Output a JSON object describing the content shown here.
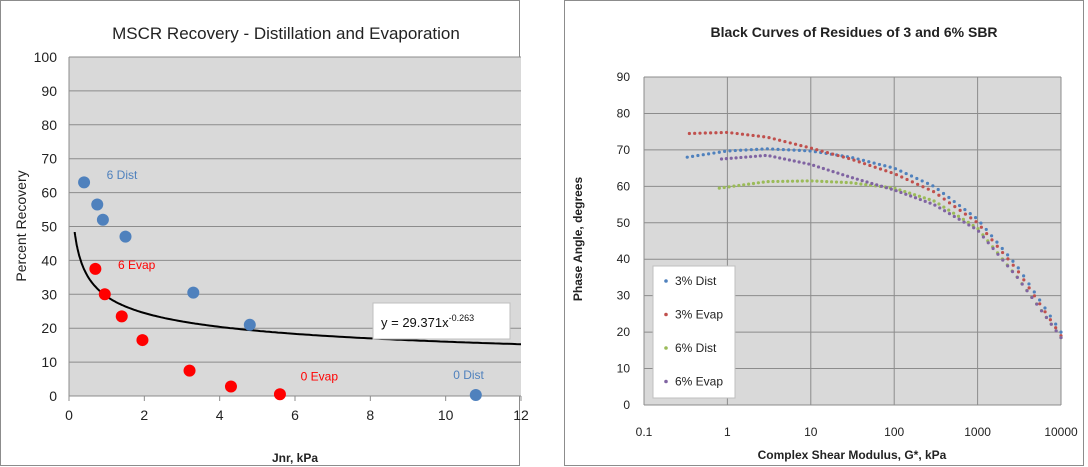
{
  "chart_data": [
    {
      "type": "scatter",
      "title": "MSCR Recovery - Distillation and Evaporation",
      "xlabel": "Jnr, kPa",
      "ylabel": "Percent Recovery",
      "xlim": [
        0,
        12
      ],
      "ylim": [
        0,
        100
      ],
      "xticks": [
        "0",
        "2",
        "4",
        "6",
        "8",
        "10",
        "12"
      ],
      "yticks": [
        "0",
        "10",
        "20",
        "30",
        "40",
        "50",
        "60",
        "70",
        "80",
        "90",
        "100"
      ],
      "grid": true,
      "background": "#d9d9d9",
      "series": [
        {
          "color": "#4f81bd",
          "points": [
            [
              0.4,
              63
            ],
            [
              0.75,
              56.5
            ],
            [
              0.9,
              52
            ],
            [
              1.5,
              47
            ],
            [
              3.3,
              30.5
            ],
            [
              4.8,
              21
            ],
            [
              10.8,
              0.3
            ]
          ]
        },
        {
          "color": "#ff0000",
          "points": [
            [
              0.7,
              37.5
            ],
            [
              0.95,
              30
            ],
            [
              1.4,
              23.5
            ],
            [
              1.95,
              16.5
            ],
            [
              3.2,
              7.5
            ],
            [
              4.3,
              2.8
            ],
            [
              5.6,
              0.5
            ]
          ]
        }
      ],
      "trendline": {
        "a": 29.371,
        "b": -0.263,
        "x_from": 0.15,
        "x_to": 12,
        "color": "#000000"
      },
      "equation": {
        "prefix": "y = 29.371x",
        "exponent": "-0.263"
      },
      "annotations": [
        {
          "text": "6 Dist",
          "color": "#4f81bd",
          "at": [
            1.0,
            64
          ]
        },
        {
          "text": "6 Evap",
          "color": "#ff0000",
          "at": [
            1.3,
            37.5
          ]
        },
        {
          "text": "0 Evap",
          "color": "#ff0000",
          "at": [
            6.15,
            4.5
          ]
        },
        {
          "text": "0 Dist",
          "color": "#4f81bd",
          "at": [
            10.2,
            5
          ]
        }
      ]
    },
    {
      "type": "scatter",
      "title": "Black Curves of Residues of 3 and 6% SBR",
      "xlabel": "Complex Shear Modulus, G*, kPa",
      "ylabel": "Phase Angle, degrees",
      "xscale": "log",
      "xlim": [
        0.1,
        10000
      ],
      "ylim": [
        0,
        90
      ],
      "xticks": [
        "0.1",
        "1",
        "10",
        "100",
        "1000",
        "10000"
      ],
      "yticks": [
        "0",
        "10",
        "20",
        "30",
        "40",
        "50",
        "60",
        "70",
        "80",
        "90"
      ],
      "grid": true,
      "background": "#d9d9d9",
      "legend": "bottom-left",
      "series": [
        {
          "name": "3% Dist",
          "color": "#4f81bd",
          "knots": [
            [
              0.33,
              68
            ],
            [
              1,
              69.7
            ],
            [
              3,
              70.3
            ],
            [
              10,
              69.7
            ],
            [
              30,
              68
            ],
            [
              100,
              65
            ],
            [
              300,
              60
            ],
            [
              1000,
              51
            ],
            [
              3000,
              38
            ],
            [
              10000,
              20
            ]
          ]
        },
        {
          "name": "3% Evap",
          "color": "#c0504d",
          "knots": [
            [
              0.35,
              74.5
            ],
            [
              1,
              74.8
            ],
            [
              3,
              73.5
            ],
            [
              10,
              70.5
            ],
            [
              30,
              67.5
            ],
            [
              100,
              63.5
            ],
            [
              300,
              58.5
            ],
            [
              1000,
              50
            ],
            [
              3000,
              37
            ],
            [
              10000,
              19
            ]
          ]
        },
        {
          "name": "6% Dist",
          "color": "#9bbb59",
          "knots": [
            [
              0.8,
              59.5
            ],
            [
              3,
              61.3
            ],
            [
              10,
              61.5
            ],
            [
              30,
              61
            ],
            [
              100,
              59.5
            ],
            [
              300,
              56
            ],
            [
              1000,
              48.5
            ],
            [
              3000,
              35
            ],
            [
              10000,
              18.5
            ]
          ]
        },
        {
          "name": "6% Evap",
          "color": "#8064a2",
          "knots": [
            [
              0.85,
              67.5
            ],
            [
              3,
              68.5
            ],
            [
              10,
              66
            ],
            [
              30,
              62.5
            ],
            [
              100,
              59
            ],
            [
              300,
              55
            ],
            [
              1000,
              48
            ],
            [
              3000,
              35
            ],
            [
              10000,
              18.5
            ]
          ]
        }
      ]
    }
  ]
}
